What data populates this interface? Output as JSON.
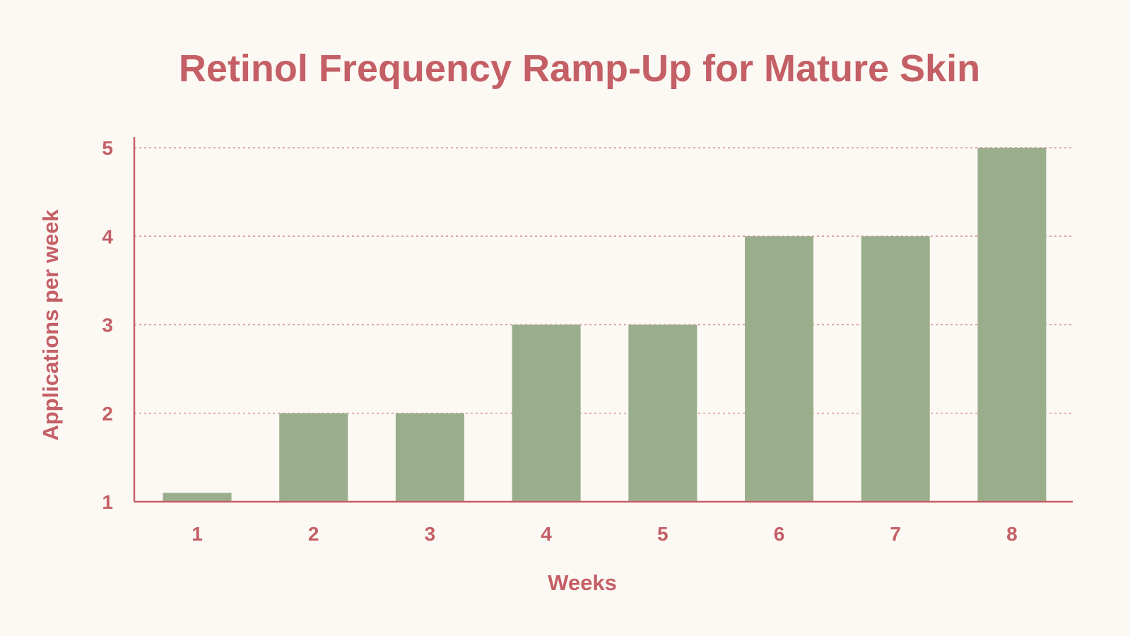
{
  "colors": {
    "background": "#fcf8f4",
    "text": "#c45f66",
    "axis": "#c45f66",
    "grid": "#d88f92",
    "bar": "#9aae8c"
  },
  "chart_data": {
    "type": "bar",
    "title": "Retinol Frequency Ramp-Up for Mature Skin",
    "xlabel": "Weeks",
    "ylabel": "Applications per week",
    "categories": [
      "1",
      "2",
      "3",
      "4",
      "5",
      "6",
      "7",
      "8"
    ],
    "values": [
      1.1,
      2,
      2,
      3,
      3,
      4,
      4,
      5
    ],
    "yticks": [
      1,
      2,
      3,
      4,
      5
    ],
    "ylim": [
      1,
      5
    ],
    "grid": true,
    "legend": false
  }
}
